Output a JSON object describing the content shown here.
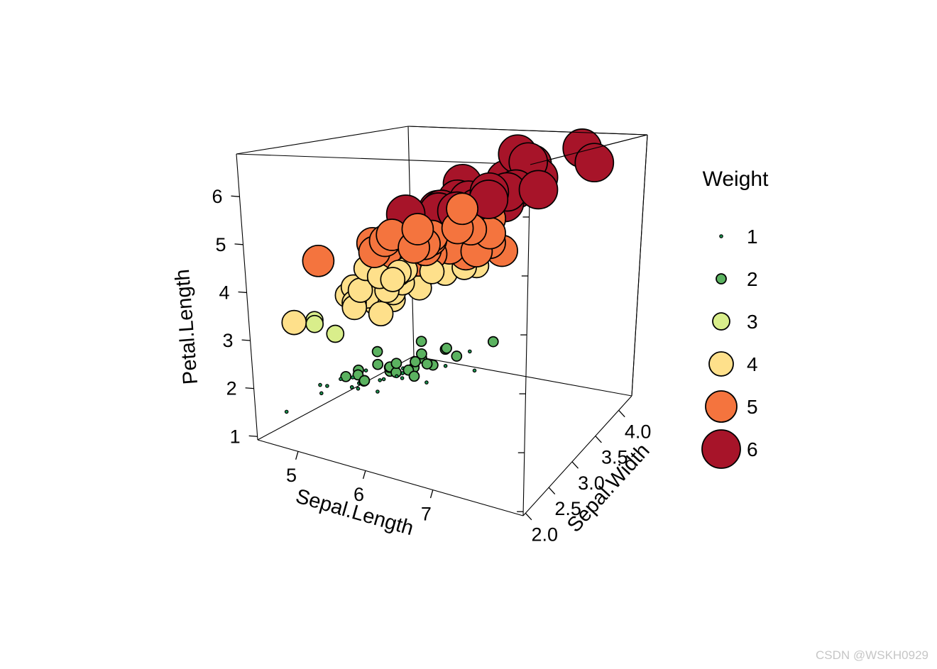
{
  "watermark": "CSDN @WSKH0929",
  "legend": {
    "title": "Weight",
    "items": [
      {
        "label": "1"
      },
      {
        "label": "2"
      },
      {
        "label": "3"
      },
      {
        "label": "4"
      },
      {
        "label": "5"
      },
      {
        "label": "6"
      }
    ]
  },
  "chart_data": {
    "type": "scatter",
    "projection": "3d-cloud-bubble",
    "legend_position": "right",
    "grid": false,
    "x_axis": {
      "label": "Sepal.Length",
      "range": [
        4.4,
        8.34
      ],
      "ticks": [
        {
          "v": 5,
          "label": "5"
        },
        {
          "v": 6,
          "label": "6"
        },
        {
          "v": 7,
          "label": "7"
        }
      ]
    },
    "y_axis": {
      "label": "Sepal.Width",
      "range": [
        1.95,
        4.28
      ],
      "ticks": [
        {
          "v": 2.0,
          "label": "2.0"
        },
        {
          "v": 2.5,
          "label": "2.5"
        },
        {
          "v": 3.0,
          "label": "3.0"
        },
        {
          "v": 3.5,
          "label": "3.5"
        },
        {
          "v": 4.0,
          "label": "4.0"
        }
      ]
    },
    "z_axis": {
      "label": "Petal.Length",
      "range": [
        0.93,
        6.89
      ],
      "ticks": [
        {
          "v": 1,
          "label": "1"
        },
        {
          "v": 2,
          "label": "2"
        },
        {
          "v": 3,
          "label": "3"
        },
        {
          "v": 4,
          "label": "4"
        },
        {
          "v": 5,
          "label": "5"
        },
        {
          "v": 6,
          "label": "6"
        }
      ]
    },
    "weight": {
      "levels": [
        1,
        2,
        3,
        4,
        5,
        6
      ],
      "colors": [
        "#1a9850",
        "#5bb260",
        "#d9ee8b",
        "#fee08b",
        "#f4743e",
        "#a71429"
      ],
      "radii": [
        2.2,
        7,
        12,
        17,
        22,
        27
      ]
    },
    "points": [
      [
        5.1,
        3.5,
        1.4
      ],
      [
        4.9,
        3.0,
        1.4
      ],
      [
        4.7,
        3.2,
        1.3
      ],
      [
        4.6,
        3.1,
        1.5
      ],
      [
        5.0,
        3.6,
        1.4
      ],
      [
        5.4,
        3.9,
        1.7
      ],
      [
        4.6,
        3.4,
        1.4
      ],
      [
        5.0,
        3.4,
        1.5
      ],
      [
        4.4,
        2.9,
        1.4
      ],
      [
        4.9,
        3.1,
        1.5
      ],
      [
        5.4,
        3.7,
        1.5
      ],
      [
        4.8,
        3.4,
        1.6
      ],
      [
        4.8,
        3.0,
        1.4
      ],
      [
        4.3,
        3.0,
        1.1
      ],
      [
        5.8,
        4.0,
        1.2
      ],
      [
        5.7,
        4.4,
        1.5
      ],
      [
        5.4,
        3.9,
        1.3
      ],
      [
        5.1,
        3.5,
        1.4
      ],
      [
        5.7,
        3.8,
        1.7
      ],
      [
        5.1,
        3.8,
        1.5
      ],
      [
        5.4,
        3.4,
        1.7
      ],
      [
        5.1,
        3.7,
        1.5
      ],
      [
        4.6,
        3.6,
        1.0
      ],
      [
        5.1,
        3.3,
        1.7
      ],
      [
        4.8,
        3.4,
        1.9
      ],
      [
        5.0,
        3.0,
        1.6
      ],
      [
        5.0,
        3.4,
        1.6
      ],
      [
        5.2,
        3.5,
        1.5
      ],
      [
        5.2,
        3.4,
        1.4
      ],
      [
        4.7,
        3.2,
        1.6
      ],
      [
        4.8,
        3.1,
        1.6
      ],
      [
        5.4,
        3.4,
        1.5
      ],
      [
        5.2,
        4.1,
        1.5
      ],
      [
        5.5,
        4.2,
        1.4
      ],
      [
        4.9,
        3.1,
        1.5
      ],
      [
        5.0,
        3.2,
        1.2
      ],
      [
        5.5,
        3.5,
        1.3
      ],
      [
        4.9,
        3.6,
        1.4
      ],
      [
        4.4,
        3.0,
        1.3
      ],
      [
        5.1,
        3.4,
        1.5
      ],
      [
        5.0,
        3.5,
        1.3
      ],
      [
        4.5,
        2.3,
        1.3
      ],
      [
        4.4,
        3.2,
        1.3
      ],
      [
        5.0,
        3.5,
        1.6
      ],
      [
        5.1,
        3.8,
        1.9
      ],
      [
        4.8,
        3.0,
        1.4
      ],
      [
        5.1,
        3.8,
        1.6
      ],
      [
        4.6,
        3.2,
        1.4
      ],
      [
        5.3,
        3.7,
        1.5
      ],
      [
        5.0,
        3.3,
        1.4
      ],
      [
        7.0,
        3.2,
        4.7
      ],
      [
        6.4,
        3.2,
        4.5
      ],
      [
        6.9,
        3.1,
        4.9
      ],
      [
        5.5,
        2.3,
        4.0
      ],
      [
        6.5,
        2.8,
        4.6
      ],
      [
        5.7,
        2.8,
        4.5
      ],
      [
        6.3,
        3.3,
        4.7
      ],
      [
        4.9,
        2.4,
        3.3
      ],
      [
        6.6,
        2.9,
        4.6
      ],
      [
        5.2,
        2.7,
        3.9
      ],
      [
        5.0,
        2.0,
        3.5
      ],
      [
        5.9,
        3.0,
        4.2
      ],
      [
        6.0,
        2.2,
        4.0
      ],
      [
        6.1,
        2.9,
        4.7
      ],
      [
        5.6,
        2.9,
        3.6
      ],
      [
        6.7,
        3.1,
        4.4
      ],
      [
        5.6,
        3.0,
        4.5
      ],
      [
        5.8,
        2.7,
        4.1
      ],
      [
        6.2,
        2.2,
        4.5
      ],
      [
        5.6,
        2.5,
        3.9
      ],
      [
        5.9,
        3.2,
        4.8
      ],
      [
        6.1,
        2.8,
        4.0
      ],
      [
        6.3,
        2.5,
        4.9
      ],
      [
        6.1,
        2.8,
        4.7
      ],
      [
        6.4,
        2.9,
        4.3
      ],
      [
        6.6,
        3.0,
        4.4
      ],
      [
        6.8,
        2.8,
        4.8
      ],
      [
        6.7,
        3.0,
        5.0
      ],
      [
        6.0,
        2.9,
        4.5
      ],
      [
        5.7,
        2.6,
        3.5
      ],
      [
        5.5,
        2.4,
        3.8
      ],
      [
        5.5,
        2.4,
        3.7
      ],
      [
        5.8,
        2.7,
        3.9
      ],
      [
        6.0,
        2.7,
        5.1
      ],
      [
        5.4,
        3.0,
        4.5
      ],
      [
        6.0,
        3.4,
        4.5
      ],
      [
        6.7,
        3.1,
        4.7
      ],
      [
        6.3,
        2.3,
        4.4
      ],
      [
        5.6,
        3.0,
        4.1
      ],
      [
        5.5,
        2.5,
        4.0
      ],
      [
        5.5,
        2.6,
        4.4
      ],
      [
        6.1,
        3.0,
        4.6
      ],
      [
        5.8,
        2.6,
        4.0
      ],
      [
        5.0,
        2.3,
        3.3
      ],
      [
        5.6,
        2.7,
        4.2
      ],
      [
        5.7,
        3.0,
        4.2
      ],
      [
        5.7,
        2.9,
        4.2
      ],
      [
        6.2,
        2.9,
        4.3
      ],
      [
        5.1,
        2.5,
        3.0
      ],
      [
        5.7,
        2.8,
        4.1
      ],
      [
        6.3,
        3.3,
        6.0
      ],
      [
        5.8,
        2.7,
        5.1
      ],
      [
        7.1,
        3.0,
        5.9
      ],
      [
        6.3,
        2.9,
        5.6
      ],
      [
        6.5,
        3.0,
        5.8
      ],
      [
        7.6,
        3.0,
        6.6
      ],
      [
        4.9,
        2.5,
        4.5
      ],
      [
        7.3,
        2.9,
        6.3
      ],
      [
        6.7,
        2.5,
        5.8
      ],
      [
        7.2,
        3.6,
        6.1
      ],
      [
        6.5,
        3.2,
        5.1
      ],
      [
        6.4,
        2.7,
        5.3
      ],
      [
        6.8,
        3.0,
        5.5
      ],
      [
        5.7,
        2.5,
        5.0
      ],
      [
        5.8,
        2.8,
        5.1
      ],
      [
        6.4,
        3.2,
        5.3
      ],
      [
        6.5,
        3.0,
        5.5
      ],
      [
        7.7,
        3.8,
        6.7
      ],
      [
        7.7,
        2.6,
        6.9
      ],
      [
        6.0,
        2.2,
        5.0
      ],
      [
        6.9,
        3.2,
        5.7
      ],
      [
        5.6,
        2.8,
        4.9
      ],
      [
        7.7,
        2.8,
        6.7
      ],
      [
        6.3,
        2.7,
        4.9
      ],
      [
        6.7,
        3.3,
        5.7
      ],
      [
        7.2,
        3.2,
        6.0
      ],
      [
        6.2,
        2.8,
        4.8
      ],
      [
        6.1,
        3.0,
        4.9
      ],
      [
        6.4,
        2.8,
        5.6
      ],
      [
        7.2,
        3.0,
        5.8
      ],
      [
        7.4,
        2.8,
        6.1
      ],
      [
        7.9,
        3.8,
        6.4
      ],
      [
        6.4,
        2.8,
        5.6
      ],
      [
        6.3,
        2.8,
        5.1
      ],
      [
        6.1,
        2.6,
        5.6
      ],
      [
        7.7,
        3.0,
        6.1
      ],
      [
        6.3,
        3.4,
        5.6
      ],
      [
        6.4,
        3.1,
        5.5
      ],
      [
        6.0,
        3.0,
        4.8
      ],
      [
        6.9,
        3.1,
        5.4
      ],
      [
        6.7,
        3.1,
        5.6
      ],
      [
        6.9,
        3.1,
        5.1
      ],
      [
        5.8,
        2.7,
        5.1
      ],
      [
        6.8,
        3.2,
        5.9
      ],
      [
        6.7,
        3.3,
        5.7
      ],
      [
        6.7,
        3.0,
        5.2
      ],
      [
        6.3,
        2.5,
        5.0
      ],
      [
        6.5,
        3.0,
        5.2
      ],
      [
        6.2,
        3.4,
        5.4
      ],
      [
        5.9,
        3.0,
        5.1
      ]
    ]
  }
}
